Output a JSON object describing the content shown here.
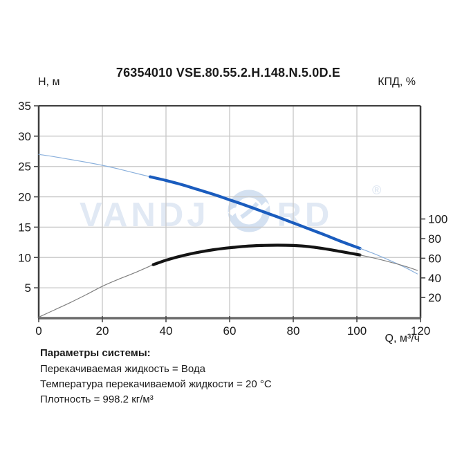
{
  "header": {
    "title": "76354010 VSE.80.55.2.H.148.N.5.0D.E",
    "left_axis_title": "Н, м",
    "right_axis_title": "КПД, %",
    "x_axis_title": "Q, м³/ч"
  },
  "watermark": {
    "text_left": "VANDJ",
    "text_right": "RD",
    "registered_mark": "®"
  },
  "system_params": {
    "heading": "Параметры системы:",
    "lines": [
      "Перекачиваемая жидкость = Вода",
      "Температура перекачиваемой жидкости = 20 °C",
      "Плотность = 998.2 кг/м³"
    ]
  },
  "colors": {
    "curve_blue_thick": "#1a5cbe",
    "curve_blue_thin": "#8ab0dc",
    "curve_black_thick": "#141414",
    "curve_gray_thin": "#808080",
    "grid": "#c7c7c7",
    "frame": "#3d3d3d",
    "bottom_axis": "#6a6a6a",
    "tick": "#4a4a4a",
    "label": "#1a1a1a"
  },
  "chart_data": {
    "type": "line",
    "title": "76354010 VSE.80.55.2.H.148.N.5.0D.E",
    "xlabel": "Q, м³/ч",
    "x_axis": {
      "min": 0,
      "max": 120,
      "ticks": [
        0,
        20,
        40,
        60,
        80,
        100,
        120
      ]
    },
    "left_axis": {
      "label": "Н, м",
      "min": 0,
      "max": 35,
      "ticks": [
        5,
        10,
        15,
        20,
        25,
        30,
        35
      ]
    },
    "right_axis": {
      "label": "КПД, %",
      "min": 0,
      "ticks": [
        20,
        40,
        60,
        80,
        100
      ]
    },
    "grid": true,
    "legend": "none",
    "series": [
      {
        "name": "head-curve",
        "axis": "left",
        "segments": [
          {
            "weight": "thin",
            "points": [
              [
                0,
                27.0
              ],
              [
                5,
                26.6
              ],
              [
                10,
                26.15
              ],
              [
                15,
                25.7
              ],
              [
                20,
                25.2
              ],
              [
                25,
                24.6
              ],
              [
                30,
                23.95
              ],
              [
                35,
                23.3
              ]
            ]
          },
          {
            "weight": "thick",
            "points": [
              [
                35,
                23.3
              ],
              [
                40,
                22.7
              ],
              [
                45,
                22.0
              ],
              [
                50,
                21.2
              ],
              [
                55,
                20.4
              ],
              [
                60,
                19.5
              ],
              [
                65,
                18.6
              ],
              [
                70,
                17.65
              ],
              [
                75,
                16.7
              ],
              [
                80,
                15.7
              ],
              [
                85,
                14.7
              ],
              [
                90,
                13.7
              ],
              [
                95,
                12.65
              ],
              [
                101,
                11.5
              ]
            ]
          },
          {
            "weight": "thin",
            "points": [
              [
                101,
                11.5
              ],
              [
                105,
                10.7
              ],
              [
                110,
                9.6
              ],
              [
                115,
                8.4
              ],
              [
                119,
                7.3
              ]
            ]
          }
        ]
      },
      {
        "name": "efficiency-curve",
        "axis": "right",
        "segments": [
          {
            "weight": "thin",
            "points": [
              [
                0,
                0
              ],
              [
                5,
                7.5
              ],
              [
                10,
                15
              ],
              [
                15,
                23
              ],
              [
                20,
                31.5
              ],
              [
                25,
                38.5
              ],
              [
                30,
                45
              ],
              [
                36,
                53.5
              ]
            ]
          },
          {
            "weight": "thick",
            "points": [
              [
                36,
                53.5
              ],
              [
                40,
                58
              ],
              [
                45,
                62.5
              ],
              [
                50,
                66
              ],
              [
                55,
                68.7
              ],
              [
                60,
                70.7
              ],
              [
                65,
                72.2
              ],
              [
                70,
                73.0
              ],
              [
                75,
                73.3
              ],
              [
                80,
                73.0
              ],
              [
                85,
                71.8
              ],
              [
                90,
                69.6
              ],
              [
                95,
                66.8
              ],
              [
                101,
                63.3
              ]
            ]
          },
          {
            "weight": "thin",
            "points": [
              [
                101,
                63.3
              ],
              [
                105,
                60.5
              ],
              [
                110,
                56.5
              ],
              [
                115,
                52.0
              ],
              [
                119,
                47.7
              ]
            ]
          }
        ]
      }
    ]
  }
}
